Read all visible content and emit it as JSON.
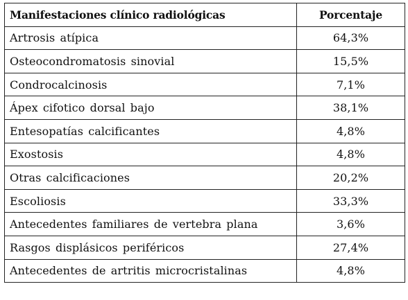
{
  "table": {
    "headers": [
      "Manifestaciones clínico radiológicas",
      "Porcentaje"
    ],
    "rows": [
      [
        "Artrosis atípica",
        "64,3%"
      ],
      [
        "Osteocondromatosis sinovial",
        "15,5%"
      ],
      [
        "Condrocalcinosis",
        "7,1%"
      ],
      [
        "Ápex cifotico dorsal bajo",
        "38,1%"
      ],
      [
        "Entesopatías calcificantes",
        "4,8%"
      ],
      [
        "Exostosis",
        "4,8%"
      ],
      [
        "Otras calcificaciones",
        "20,2%"
      ],
      [
        "Escoliosis",
        "33,3%"
      ],
      [
        "Antecedentes familiares de vertebra plana",
        "3,6%"
      ],
      [
        "Rasgos displásicos periféricos",
        "27,4%"
      ],
      [
        "Antecedentes de artritis microcristalinas",
        "4,8%"
      ]
    ]
  }
}
